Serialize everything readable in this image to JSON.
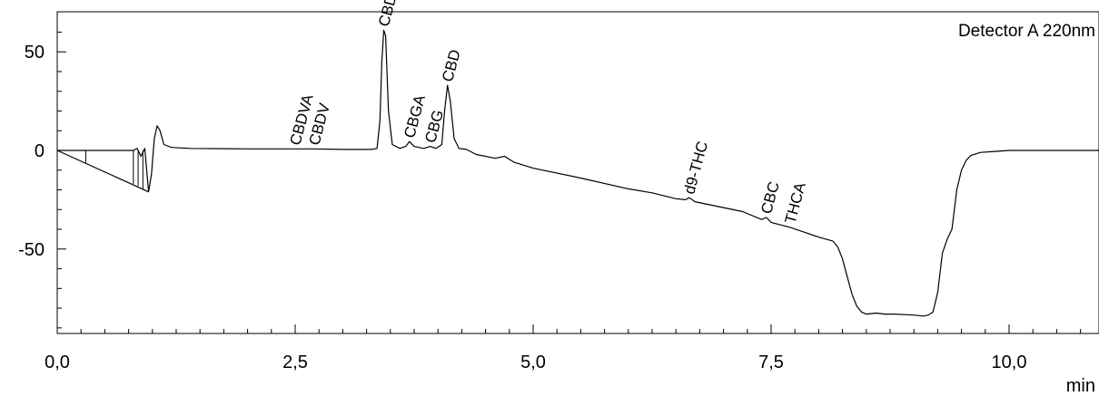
{
  "chart_data": {
    "type": "line",
    "title": "",
    "detector_label": "Detector A 220nm",
    "xlabel": "min",
    "ylabel": "",
    "xlim": [
      0,
      11.1
    ],
    "ylim": [
      -92,
      70
    ],
    "x_ticks": [
      0,
      2.5,
      5,
      7.5,
      10
    ],
    "x_tick_labels": [
      "0,0",
      "2,5",
      "5,0",
      "7,5",
      "10,0"
    ],
    "x_minor_step": 0.25,
    "y_ticks": [
      50,
      0,
      -50
    ],
    "y_tick_labels": [
      "50",
      "0",
      "-50"
    ],
    "y_minor_step": 10,
    "grid": false,
    "series": [
      {
        "color": "#000000",
        "points": [
          [
            0,
            0
          ],
          [
            0.8,
            0
          ],
          [
            0.84,
            1
          ],
          [
            0.88,
            -3
          ],
          [
            0.92,
            1
          ],
          [
            0.96,
            -21
          ],
          [
            0.99,
            -12
          ],
          [
            1.02,
            6
          ],
          [
            1.05,
            12.5
          ],
          [
            1.08,
            10
          ],
          [
            1.12,
            3
          ],
          [
            1.2,
            1.5
          ],
          [
            1.4,
            1
          ],
          [
            2.0,
            0.8
          ],
          [
            2.5,
            0.8
          ],
          [
            2.7,
            0.8
          ],
          [
            3.0,
            0.5
          ],
          [
            3.3,
            0.5
          ],
          [
            3.36,
            1
          ],
          [
            3.39,
            15
          ],
          [
            3.41,
            45
          ],
          [
            3.43,
            61
          ],
          [
            3.45,
            58
          ],
          [
            3.48,
            20
          ],
          [
            3.52,
            3
          ],
          [
            3.6,
            1
          ],
          [
            3.66,
            2
          ],
          [
            3.7,
            4.5
          ],
          [
            3.75,
            2
          ],
          [
            3.85,
            1
          ],
          [
            3.92,
            2
          ],
          [
            3.98,
            1
          ],
          [
            4.04,
            3
          ],
          [
            4.07,
            20
          ],
          [
            4.1,
            33
          ],
          [
            4.13,
            25
          ],
          [
            4.17,
            6
          ],
          [
            4.22,
            1
          ],
          [
            4.3,
            0.5
          ],
          [
            4.4,
            -2
          ],
          [
            4.6,
            -4
          ],
          [
            4.7,
            -3
          ],
          [
            4.8,
            -6
          ],
          [
            5.0,
            -9
          ],
          [
            5.5,
            -14
          ],
          [
            6.0,
            -19.5
          ],
          [
            6.25,
            -21.5
          ],
          [
            6.5,
            -24.5
          ],
          [
            6.6,
            -25
          ],
          [
            6.64,
            -24
          ],
          [
            6.7,
            -26
          ],
          [
            7.0,
            -29
          ],
          [
            7.2,
            -31
          ],
          [
            7.4,
            -35
          ],
          [
            7.45,
            -34
          ],
          [
            7.5,
            -36.5
          ],
          [
            7.7,
            -39
          ],
          [
            8.0,
            -44
          ],
          [
            8.15,
            -46
          ],
          [
            8.2,
            -49
          ],
          [
            8.25,
            -55
          ],
          [
            8.3,
            -64
          ],
          [
            8.35,
            -73
          ],
          [
            8.4,
            -79
          ],
          [
            8.45,
            -82
          ],
          [
            8.5,
            -83
          ],
          [
            8.6,
            -82.5
          ],
          [
            8.7,
            -83
          ],
          [
            8.8,
            -83
          ],
          [
            9.0,
            -83.5
          ],
          [
            9.1,
            -84
          ],
          [
            9.15,
            -83.5
          ],
          [
            9.2,
            -82
          ],
          [
            9.25,
            -72
          ],
          [
            9.3,
            -52
          ],
          [
            9.35,
            -45
          ],
          [
            9.4,
            -40
          ],
          [
            9.45,
            -20
          ],
          [
            9.5,
            -10
          ],
          [
            9.55,
            -5
          ],
          [
            9.6,
            -2.5
          ],
          [
            9.7,
            -1
          ],
          [
            9.85,
            -0.5
          ],
          [
            10.0,
            0
          ],
          [
            11.1,
            0
          ]
        ]
      },
      {
        "color": "#000000",
        "points": [
          [
            0,
            0
          ],
          [
            0.96,
            -21
          ]
        ]
      }
    ],
    "integration_marks": [
      {
        "x": 0.3,
        "y1": 0,
        "y2": -6.5
      },
      {
        "x": 0.8,
        "y1": 0,
        "y2": -17
      },
      {
        "x": 0.85,
        "y1": 0,
        "y2": -18
      },
      {
        "x": 0.9,
        "y1": 0,
        "y2": -19.5
      }
    ],
    "peaks": [
      {
        "label": "CBDVA",
        "x": 2.5,
        "y": 0.8
      },
      {
        "label": "CBDV",
        "x": 2.7,
        "y": 0.8
      },
      {
        "label": "CBDA",
        "x": 3.43,
        "y": 61
      },
      {
        "label": "CBGA",
        "x": 3.7,
        "y": 4.5
      },
      {
        "label": "CBG",
        "x": 3.92,
        "y": 2
      },
      {
        "label": "CBD",
        "x": 4.1,
        "y": 33
      },
      {
        "label": "d9-THC",
        "x": 6.64,
        "y": -24
      },
      {
        "label": "CBC",
        "x": 7.45,
        "y": -34
      },
      {
        "label": "THCA",
        "x": 7.7,
        "y": -39
      }
    ]
  }
}
